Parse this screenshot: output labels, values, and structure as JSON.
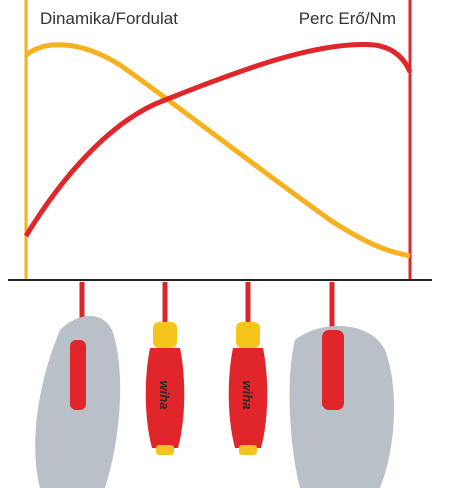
{
  "header": {
    "left_label": "Dinamika/Fordulat",
    "right_label": "Perc Erő/Nm"
  },
  "screwdrivers": [
    {
      "brand": "wiha"
    },
    {
      "brand": "wiha"
    }
  ]
}
